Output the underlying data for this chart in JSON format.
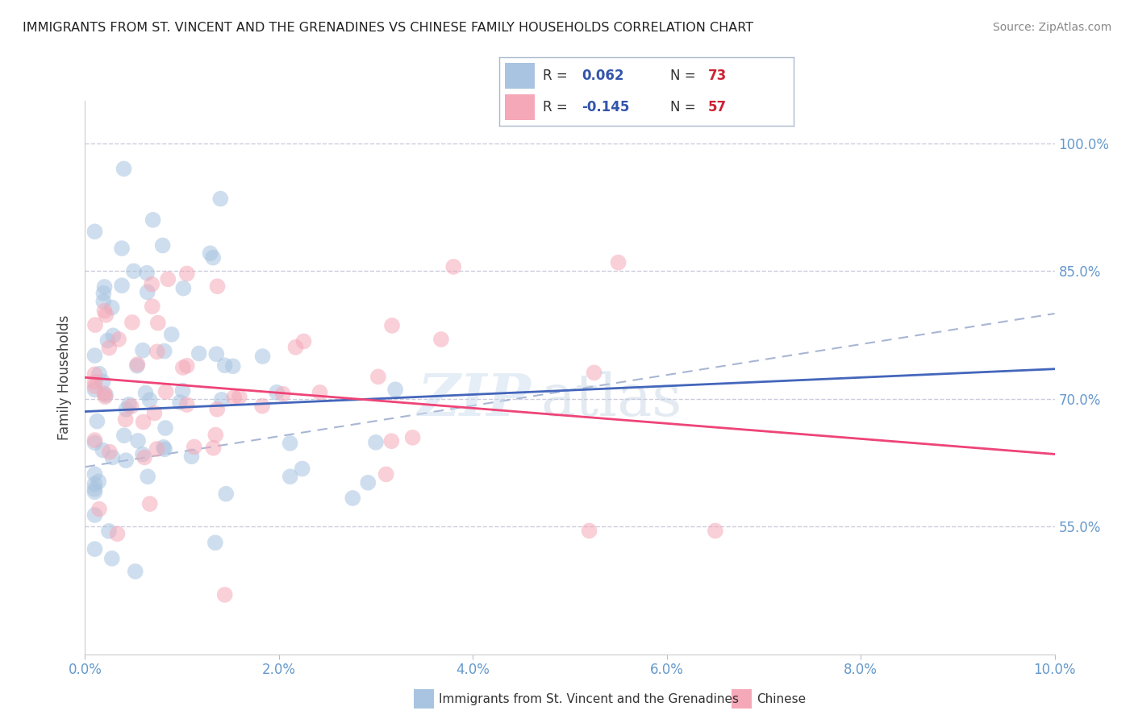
{
  "title": "IMMIGRANTS FROM ST. VINCENT AND THE GRENADINES VS CHINESE FAMILY HOUSEHOLDS CORRELATION CHART",
  "source": "Source: ZipAtlas.com",
  "ylabel": "Family Households",
  "blue_color": "#A8C4E0",
  "pink_color": "#F5A8B8",
  "blue_line_color": "#4466BB",
  "pink_line_color": "#EE4477",
  "dash_line_color": "#99AACC",
  "grid_color": "#CCCCDD",
  "right_axis_color": "#6699CC",
  "legend_r_color": "#3355AA",
  "legend_n_color": "#CC2233",
  "yticks": [
    0.55,
    0.7,
    0.85,
    1.0
  ],
  "ytick_labels": [
    "55.0%",
    "70.0%",
    "85.0%",
    "100.0%"
  ],
  "xtick_labels": [
    "0.0%",
    "2.0%",
    "4.0%",
    "6.0%",
    "8.0%",
    "10.0%"
  ],
  "xticks": [
    0.0,
    0.02,
    0.04,
    0.06,
    0.08,
    0.1
  ],
  "xlim": [
    0.0,
    0.1
  ],
  "ylim": [
    0.4,
    1.05
  ],
  "blue_line_x0": 0.0,
  "blue_line_y0": 0.685,
  "blue_line_x1": 0.1,
  "blue_line_y1": 0.735,
  "pink_line_x0": 0.0,
  "pink_line_y0": 0.725,
  "pink_line_x1": 0.1,
  "pink_line_y1": 0.635,
  "dash_line_x0": 0.0,
  "dash_line_y0": 0.62,
  "dash_line_x1": 0.1,
  "dash_line_y1": 0.8,
  "watermark_zip": "ZIP",
  "watermark_atlas": "atlas",
  "legend_entry1_r": "R = ",
  "legend_entry1_rval": "0.062",
  "legend_entry1_n": "N = ",
  "legend_entry1_nval": "73",
  "legend_entry2_r": "R = ",
  "legend_entry2_rval": "-0.145",
  "legend_entry2_n": "N = ",
  "legend_entry2_nval": "57",
  "bottom_legend1": "Immigrants from St. Vincent and the Grenadines",
  "bottom_legend2": "Chinese"
}
